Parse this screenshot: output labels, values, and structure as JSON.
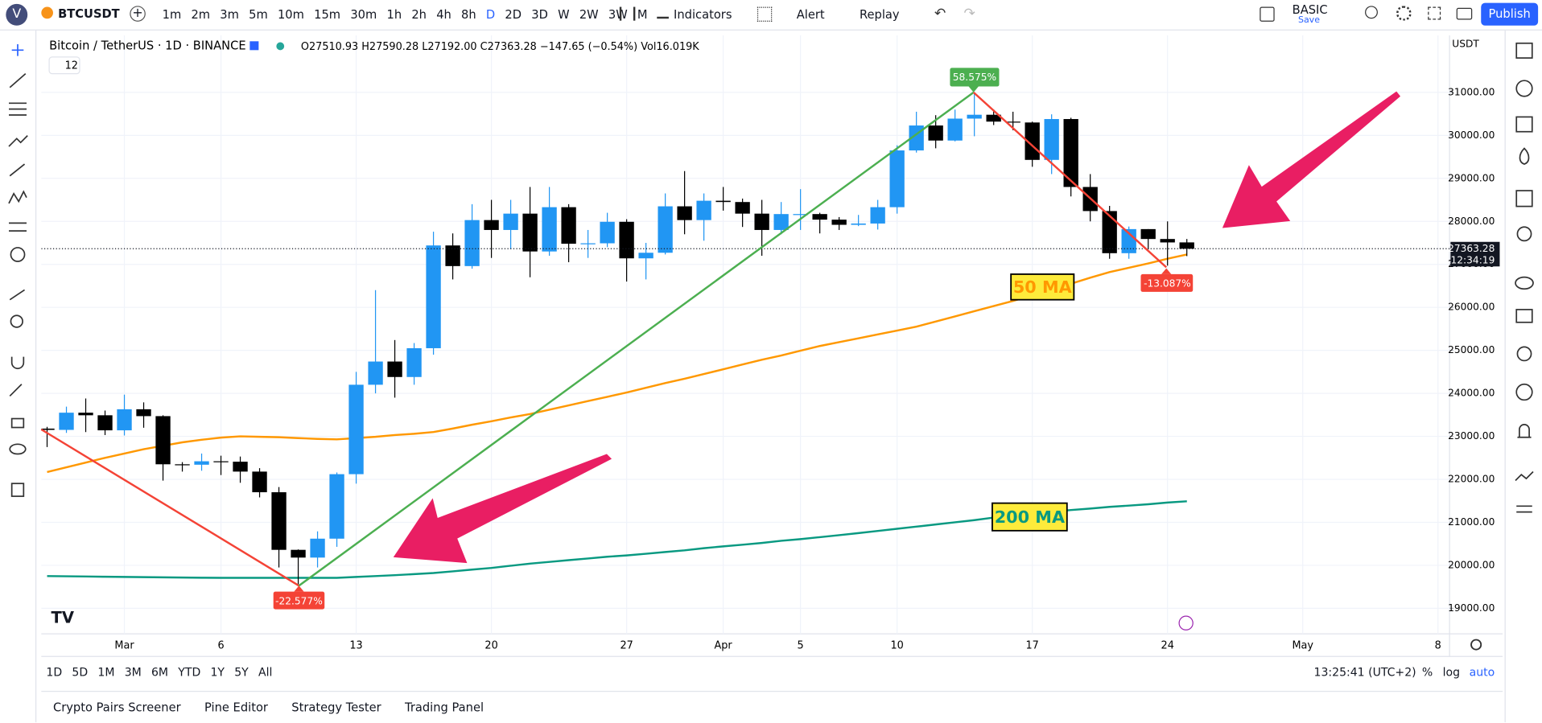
{
  "toolbar": {
    "avatar": "V",
    "symbol": "BTCUSDT",
    "intervals": [
      "1m",
      "2m",
      "3m",
      "5m",
      "10m",
      "15m",
      "30m",
      "1h",
      "2h",
      "4h",
      "8h",
      "D",
      "2D",
      "3D",
      "W",
      "2W",
      "3W",
      "M"
    ],
    "indicators": "Indicators",
    "alert": "Alert",
    "replay": "Replay",
    "layout": "BASIC",
    "save": "Save",
    "publish": "Publish"
  },
  "legend": {
    "title": "Bitcoin / TetherUS · 1D · BINANCE",
    "ohlc": "O27510.93 H27590.28 L27192.00 C27363.28 −147.65 (−0.54%) Vol16.019K",
    "count": "12"
  },
  "chart": {
    "type": "candlestick",
    "currency": "USDT",
    "open": [
      23180,
      23150,
      23550,
      23490,
      23140,
      23630,
      23470,
      22350,
      22340,
      22420,
      22410,
      22180,
      21700,
      20360,
      20180,
      20620,
      22120,
      24200,
      24740,
      24380,
      25050,
      27440,
      26960,
      28030,
      27800,
      28180,
      27300,
      28330,
      27480,
      27490,
      27990,
      27140,
      27270,
      28350,
      28030,
      28480,
      28450,
      28180,
      27800,
      28170,
      28170,
      28040,
      27920,
      27950,
      28330,
      29650,
      30230,
      29880,
      30390,
      30480,
      30320,
      30300,
      29430,
      30380,
      28800,
      28240,
      27260,
      27820,
      27590,
      27510.93
    ],
    "high": [
      23220,
      23690,
      23880,
      23600,
      23970,
      23790,
      23490,
      22400,
      22600,
      22550,
      22530,
      22260,
      21820,
      20370,
      20790,
      22160,
      24500,
      26400,
      25240,
      25170,
      27760,
      27720,
      28400,
      28500,
      28500,
      28800,
      28800,
      28400,
      27800,
      28200,
      28050,
      27500,
      28650,
      29170,
      28650,
      28800,
      28530,
      28500,
      28450,
      28750,
      28200,
      28100,
      28150,
      28500,
      29770,
      30550,
      30470,
      30600,
      31000,
      30600,
      30550,
      30320,
      30490,
      30410,
      29100,
      28360,
      27880,
      27820,
      28000,
      27590.28
    ],
    "low": [
      22750,
      23080,
      23100,
      23030,
      23020,
      23200,
      21970,
      22180,
      22200,
      22100,
      21920,
      21580,
      19950,
      19550,
      19950,
      20430,
      21900,
      24000,
      23900,
      24200,
      24900,
      26650,
      26900,
      27150,
      27350,
      26700,
      27200,
      27050,
      27150,
      27400,
      26600,
      26650,
      27230,
      27700,
      27550,
      28250,
      27870,
      27200,
      27700,
      27800,
      27720,
      27800,
      27890,
      27810,
      28180,
      29600,
      29700,
      29860,
      29980,
      30240,
      30120,
      29270,
      29100,
      28580,
      28000,
      27130,
      27130,
      27350,
      26970,
      27192
    ],
    "close": [
      23150,
      23550,
      23490,
      23140,
      23630,
      23470,
      22350,
      22340,
      22420,
      22410,
      22180,
      21700,
      20360,
      20180,
      20620,
      22120,
      24200,
      24740,
      24380,
      25050,
      27440,
      26960,
      28030,
      27800,
      28180,
      27300,
      28330,
      27480,
      27490,
      27990,
      27140,
      27270,
      28350,
      28030,
      28480,
      28450,
      28180,
      27800,
      28170,
      28170,
      28040,
      27920,
      27950,
      28330,
      29650,
      30230,
      29880,
      30390,
      30480,
      30320,
      30300,
      29430,
      30380,
      28800,
      28240,
      27260,
      27820,
      27590,
      27510,
      27363.28
    ],
    "ma50": {
      "color": "#ff9800",
      "values": [
        22170,
        22280,
        22390,
        22500,
        22600,
        22700,
        22780,
        22860,
        22920,
        22970,
        23000,
        22990,
        22980,
        22960,
        22940,
        22930,
        22960,
        22990,
        23030,
        23060,
        23100,
        23180,
        23270,
        23350,
        23440,
        23520,
        23620,
        23720,
        23820,
        23920,
        24020,
        24130,
        24240,
        24340,
        24450,
        24560,
        24670,
        24780,
        24880,
        24990,
        25100,
        25190,
        25280,
        25370,
        25460,
        25550,
        25670,
        25790,
        25910,
        26030,
        26150,
        26280,
        26420,
        26550,
        26690,
        26820,
        26920,
        27020,
        27130,
        27230
      ]
    },
    "ma200": {
      "color": "#089981",
      "values": [
        19750,
        19745,
        19740,
        19735,
        19730,
        19725,
        19720,
        19715,
        19712,
        19710,
        19708,
        19708,
        19708,
        19708,
        19708,
        19710,
        19730,
        19750,
        19770,
        19795,
        19820,
        19860,
        19900,
        19940,
        19990,
        20040,
        20080,
        20120,
        20160,
        20200,
        20230,
        20270,
        20310,
        20350,
        20400,
        20440,
        20480,
        20520,
        20570,
        20610,
        20655,
        20700,
        20750,
        20800,
        20850,
        20900,
        20950,
        21000,
        21050,
        21110,
        21167,
        21205,
        21245,
        21285,
        21320,
        21360,
        21390,
        21420,
        21460,
        21490
      ]
    },
    "up_color": "#2196f3",
    "down_color": "#000000",
    "ylim": [
      18406,
      32326
    ],
    "xlim": [
      -0.3,
      72.6
    ],
    "yticks": [
      {
        "value": 19000,
        "label": "19000.00"
      },
      {
        "value": 20000,
        "label": "20000.00"
      },
      {
        "value": 21000,
        "label": "21000.00"
      },
      {
        "value": 22000,
        "label": "22000.00"
      },
      {
        "value": 23000,
        "label": "23000.00"
      },
      {
        "value": 24000,
        "label": "24000.00"
      },
      {
        "value": 25000,
        "label": "25000.00"
      },
      {
        "value": 26000,
        "label": "26000.00"
      },
      {
        "value": 27000,
        "label": "27000.00"
      },
      {
        "value": 28000,
        "label": "28000.00"
      },
      {
        "value": 29000,
        "label": "29000.00"
      },
      {
        "value": 30000,
        "label": "30000.00"
      },
      {
        "value": 31000,
        "label": "31000.00"
      }
    ],
    "xticks": [
      {
        "value": 4,
        "label": "Mar"
      },
      {
        "value": 9,
        "label": "6"
      },
      {
        "value": 16,
        "label": "13"
      },
      {
        "value": 23,
        "label": "20"
      },
      {
        "value": 30,
        "label": "27"
      },
      {
        "value": 35,
        "label": "Apr"
      },
      {
        "value": 39,
        "label": "5"
      },
      {
        "value": 44,
        "label": "10"
      },
      {
        "value": 51,
        "label": "17"
      },
      {
        "value": 58,
        "label": "24"
      },
      {
        "value": 65,
        "label": "May"
      },
      {
        "value": 72,
        "label": "8"
      }
    ],
    "grid": true,
    "last_price": 27363.28,
    "countdown": "12:34:19",
    "annotations": [
      "50 MA",
      "200 MA"
    ],
    "measurements": [
      "-22.577%",
      "58.575%",
      "-13.087%"
    ]
  },
  "range_bar": {
    "ranges": [
      "1D",
      "5D",
      "1M",
      "3M",
      "6M",
      "YTD",
      "1Y",
      "5Y",
      "All"
    ],
    "clock": "13:25:41 (UTC+2)",
    "percent": "%",
    "log": "log",
    "auto": "auto"
  },
  "bottom_panel": {
    "tabs": [
      "Crypto Pairs Screener",
      "Pine Editor",
      "Strategy Tester",
      "Trading Panel"
    ]
  }
}
